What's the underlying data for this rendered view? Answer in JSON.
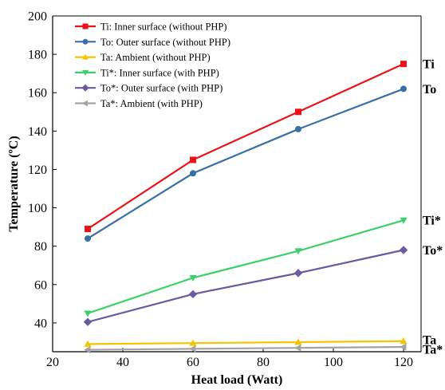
{
  "chart_data": {
    "type": "line",
    "xlabel": "Heat load (Watt)",
    "ylabel": "Temperature (ºC)",
    "xlim": [
      20,
      125
    ],
    "ylim": [
      25,
      200
    ],
    "x_ticks": [
      20,
      40,
      60,
      80,
      100,
      120
    ],
    "y_ticks": [
      40,
      60,
      80,
      100,
      120,
      140,
      160,
      180,
      200
    ],
    "x": [
      30,
      60,
      90,
      120
    ],
    "grid": false,
    "legend_position": "top-left",
    "series": [
      {
        "name": "Ti: Inner surface (without PHP)",
        "end_label": "Ti",
        "color": "#e8141b",
        "marker": "square",
        "values": [
          89,
          125,
          150,
          175
        ]
      },
      {
        "name": "To: Outer surface (without PHP)",
        "end_label": "To",
        "color": "#3a6fa6",
        "marker": "circle",
        "values": [
          84,
          118,
          141,
          162
        ]
      },
      {
        "name": "Ta: Ambient (without PHP)",
        "end_label": "Ta",
        "color": "#f5c400",
        "marker": "triangle-up",
        "values": [
          29,
          29.5,
          30,
          30.5
        ]
      },
      {
        "name": "Ti*: Inner surface (with PHP)",
        "end_label": "Ti*",
        "color": "#3ecf6a",
        "marker": "triangle-down",
        "values": [
          45,
          63.5,
          77.5,
          93.5
        ]
      },
      {
        "name": "To*: Outer surface (with PHP)",
        "end_label": "To*",
        "color": "#6b5aa0",
        "marker": "diamond",
        "values": [
          40.5,
          55,
          66,
          78
        ]
      },
      {
        "name": "Ta*: Ambient (with PHP)",
        "end_label": "Ta*",
        "color": "#a3a3a3",
        "marker": "triangle-left",
        "values": [
          26,
          26.5,
          27,
          27.5
        ]
      }
    ]
  }
}
